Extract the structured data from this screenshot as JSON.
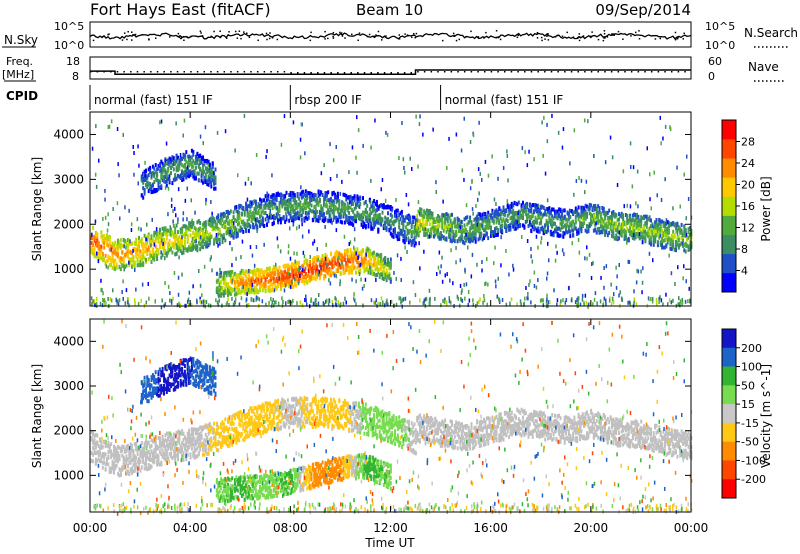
{
  "header": {
    "station": "Fort Hays East (fitACF)",
    "beam": "Beam 10",
    "date": "09/Sep/2014"
  },
  "noise_panel": {
    "left_label": "N.Sky",
    "right_label": "N.Search",
    "left_ticks": [
      "10^5",
      "10^0"
    ],
    "right_ticks": [
      "10^5",
      "10^0"
    ]
  },
  "freq_panel": {
    "left_label_1": "Freq.",
    "left_label_2": "[MHz]",
    "left_ticks": [
      "18",
      "8"
    ],
    "right_label": "Nave",
    "right_ticks": [
      "60",
      "0"
    ]
  },
  "cpid": {
    "label": "CPID",
    "segments": [
      {
        "name": "normal (fast) 151 IF",
        "start_hour": 0.0,
        "end_hour": 8.0
      },
      {
        "name": "rbsp 200 IF",
        "start_hour": 8.0,
        "end_hour": 14.0
      },
      {
        "name": "normal (fast) 151 IF",
        "start_hour": 14.0,
        "end_hour": 24.0
      }
    ]
  },
  "colors": {
    "power": [
      "#0000ff",
      "#2050c8",
      "#3c8c64",
      "#50aa3c",
      "#b4dc00",
      "#ffc800",
      "#ff8c00",
      "#ff4600",
      "#ff0000"
    ],
    "velocity": [
      "#1414c8",
      "#1e64c8",
      "#32b432",
      "#78dc50",
      "#c8c8c8",
      "#ffc814",
      "#ff8c00",
      "#ff4600",
      "#ff0000"
    ],
    "ground_scatter": "#c0c0c0"
  },
  "chart_data": [
    {
      "type": "heatmap",
      "title": "",
      "xlabel": "Time UT",
      "ylabel": "Slant Range [km]",
      "xlim": [
        0,
        24
      ],
      "ylim": [
        180,
        4500
      ],
      "x_ticks": [
        "00:00",
        "04:00",
        "08:00",
        "12:00",
        "16:00",
        "20:00",
        "00:00"
      ],
      "y_ticks": [
        "1000",
        "2000",
        "3000",
        "4000"
      ],
      "colorbar": {
        "label": "Power [dB]",
        "range": [
          0,
          32
        ],
        "ticks": [
          "4",
          "8",
          "12",
          "16",
          "20",
          "24",
          "28"
        ]
      },
      "features": [
        {
          "feature": "main band",
          "time_hours": [
            0,
            1,
            2,
            3,
            4,
            5,
            6,
            7,
            8,
            9,
            10,
            11,
            12,
            13
          ],
          "range_km": [
            1700,
            1350,
            1450,
            1650,
            1750,
            1900,
            2150,
            2350,
            2450,
            2450,
            2400,
            2300,
            2100,
            1850
          ],
          "power_db": [
            26,
            24,
            22,
            20,
            18,
            16,
            14,
            12,
            12,
            12,
            12,
            12,
            10,
            12
          ]
        },
        {
          "feature": "afternoon band",
          "time_hours": [
            13,
            14,
            15,
            16,
            17,
            18,
            19,
            20,
            21,
            22,
            23,
            24
          ],
          "range_km": [
            2100,
            2000,
            1900,
            2050,
            2250,
            2150,
            2050,
            2200,
            2000,
            1950,
            1800,
            1700
          ],
          "power_db": [
            20,
            16,
            14,
            12,
            12,
            12,
            12,
            14,
            16,
            16,
            16,
            16
          ]
        },
        {
          "feature": "near-range band",
          "time_hours": [
            5,
            6,
            7,
            8,
            9,
            10,
            11,
            12
          ],
          "range_km": [
            700,
            750,
            800,
            900,
            1050,
            1200,
            1250,
            1000
          ],
          "power_db": [
            16,
            24,
            26,
            28,
            28,
            28,
            24,
            16
          ]
        },
        {
          "feature": "high-range patch",
          "time_hours": [
            2,
            3,
            4,
            5
          ],
          "range_km": [
            2900,
            3200,
            3400,
            3100
          ],
          "power_db": [
            10,
            12,
            12,
            10
          ]
        }
      ]
    },
    {
      "type": "heatmap",
      "title": "",
      "xlabel": "Time UT",
      "ylabel": "Slant Range [km]",
      "xlim": [
        0,
        24
      ],
      "ylim": [
        180,
        4500
      ],
      "x_ticks": [
        "00:00",
        "04:00",
        "08:00",
        "12:00",
        "16:00",
        "20:00",
        "00:00"
      ],
      "y_ticks": [
        "1000",
        "2000",
        "3000",
        "4000"
      ],
      "colorbar": {
        "label": "Velocity [m s^-1]",
        "range": [
          -250,
          250
        ],
        "ticks": [
          "200",
          "100",
          "50",
          "15",
          "-15",
          "-50",
          "-100",
          "-200"
        ]
      },
      "features": [
        {
          "feature": "main band",
          "time_hours": [
            0,
            1,
            2,
            3,
            4,
            5,
            6,
            7,
            8,
            9,
            10,
            11,
            12,
            13
          ],
          "range_km": [
            1700,
            1350,
            1450,
            1650,
            1750,
            1900,
            2150,
            2350,
            2450,
            2450,
            2400,
            2300,
            2100,
            1850
          ],
          "velocity_m_s": [
            0,
            0,
            0,
            0,
            0,
            -20,
            -40,
            -30,
            0,
            -30,
            -40,
            30,
            40,
            0
          ]
        },
        {
          "feature": "afternoon band",
          "time_hours": [
            13,
            14,
            15,
            16,
            17,
            18,
            19,
            20,
            21,
            22,
            23,
            24
          ],
          "range_km": [
            2100,
            2000,
            1900,
            2050,
            2250,
            2150,
            2050,
            2200,
            2000,
            1950,
            1800,
            1700
          ],
          "velocity_m_s": [
            0,
            0,
            0,
            0,
            0,
            0,
            0,
            0,
            0,
            0,
            0,
            0
          ]
        },
        {
          "feature": "near-range band",
          "time_hours": [
            5,
            6,
            7,
            8,
            9,
            10,
            11,
            12
          ],
          "range_km": [
            700,
            750,
            800,
            900,
            1050,
            1200,
            1250,
            1000
          ],
          "velocity_m_s": [
            40,
            60,
            30,
            60,
            -80,
            -60,
            60,
            40
          ]
        },
        {
          "feature": "high-range patch",
          "time_hours": [
            2,
            3,
            4,
            5
          ],
          "range_km": [
            2900,
            3200,
            3400,
            3100
          ],
          "velocity_m_s": [
            150,
            220,
            200,
            120
          ]
        }
      ]
    }
  ]
}
